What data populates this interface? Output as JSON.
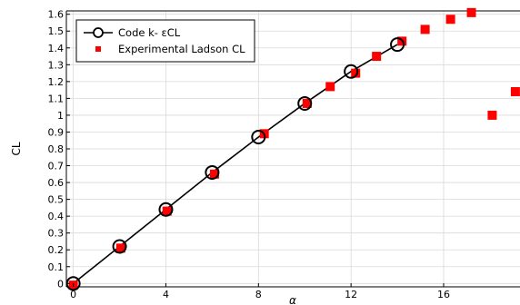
{
  "chart_data": {
    "type": "scatter",
    "xlabel": "α",
    "ylabel": "CL",
    "xlim": [
      -0.3,
      19.3
    ],
    "ylim": [
      -0.02,
      1.62
    ],
    "x_ticks": [
      0,
      4,
      8,
      12,
      16
    ],
    "y_ticks": [
      0,
      0.1,
      0.2,
      0.3,
      0.4,
      0.5,
      0.6,
      0.7,
      0.8,
      0.9,
      1,
      1.1,
      1.2,
      1.3,
      1.4,
      1.5,
      1.6
    ],
    "grid": true,
    "legend_position": "top-left",
    "series": [
      {
        "name": "Code k- εCL",
        "style": "line-open-circle",
        "color": "#000000",
        "x": [
          0,
          2,
          4,
          6,
          8,
          10,
          12,
          14
        ],
        "y": [
          0.0,
          0.22,
          0.44,
          0.66,
          0.87,
          1.07,
          1.26,
          1.42
        ]
      },
      {
        "name": "Experimental Ladson CL",
        "style": "square-marker",
        "color": "#ff0000",
        "x": [
          0,
          2.05,
          4.05,
          6.1,
          8.25,
          10.1,
          11.1,
          12.2,
          13.1,
          14.2,
          15.2,
          16.3,
          17.2,
          18.1,
          19.1
        ],
        "y": [
          -0.01,
          0.21,
          0.43,
          0.65,
          0.89,
          1.07,
          1.17,
          1.25,
          1.35,
          1.44,
          1.51,
          1.57,
          1.61,
          1.0,
          1.14
        ]
      }
    ]
  }
}
